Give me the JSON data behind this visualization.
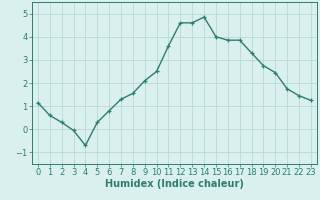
{
  "x": [
    0,
    1,
    2,
    3,
    4,
    5,
    6,
    7,
    8,
    9,
    10,
    11,
    12,
    13,
    14,
    15,
    16,
    17,
    18,
    19,
    20,
    21,
    22,
    23
  ],
  "y": [
    1.15,
    0.6,
    0.3,
    -0.05,
    -0.7,
    0.3,
    0.8,
    1.3,
    1.55,
    2.1,
    2.5,
    3.6,
    4.6,
    4.6,
    4.85,
    4.0,
    3.85,
    3.85,
    3.3,
    2.75,
    2.45,
    1.75,
    1.45,
    1.25
  ],
  "line_color": "#2e7d6e",
  "marker": "+",
  "marker_size": 3.5,
  "background_color": "#d9f0ef",
  "grid_color": "#b8d8d5",
  "xlabel": "Humidex (Indice chaleur)",
  "xlabel_fontsize": 7,
  "xlabel_fontweight": "bold",
  "xlabel_color": "#2e7d6e",
  "tick_color": "#2e7d6e",
  "ylim": [
    -1.5,
    5.5
  ],
  "xlim": [
    -0.5,
    23.5
  ],
  "yticks": [
    -1,
    0,
    1,
    2,
    3,
    4,
    5
  ],
  "xticks": [
    0,
    1,
    2,
    3,
    4,
    5,
    6,
    7,
    8,
    9,
    10,
    11,
    12,
    13,
    14,
    15,
    16,
    17,
    18,
    19,
    20,
    21,
    22,
    23
  ],
  "tick_fontsize": 6,
  "line_width": 1.0
}
